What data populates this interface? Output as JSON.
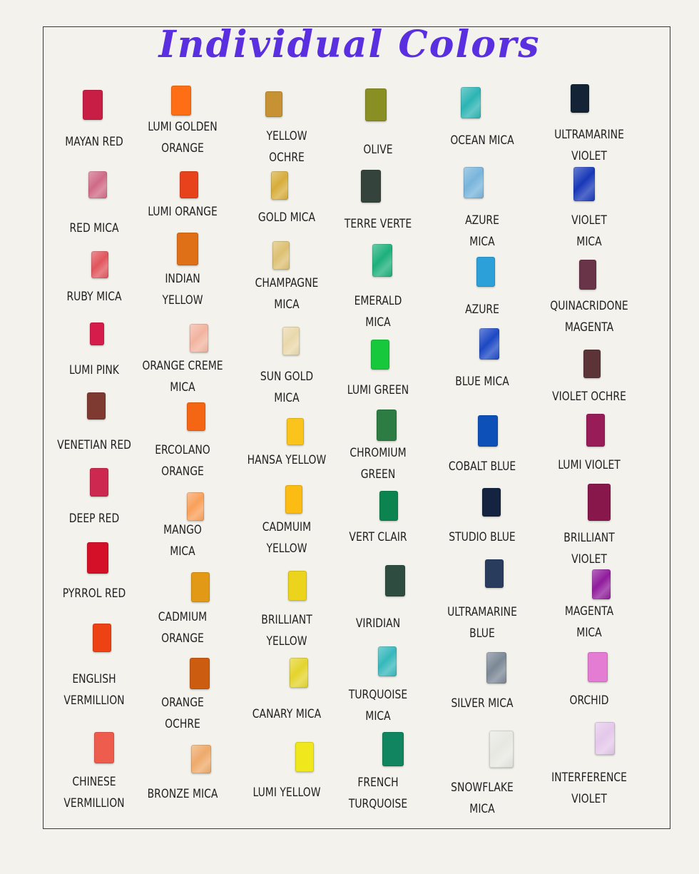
{
  "title": "Individual Colors",
  "columns": [
    {
      "items": [
        {
          "name": "MAYAN RED",
          "color": "#c81e45"
        },
        {
          "name": "RED MICA",
          "color": "#d06a86",
          "mica": true
        },
        {
          "name": "RUBY  MICA",
          "color": "#e0565c",
          "mica": true
        },
        {
          "name": "LUMI PINK",
          "color": "#d61c4a"
        },
        {
          "name": "VENETIAN RED",
          "color": "#7e3a30"
        },
        {
          "name": "DEEP RED",
          "color": "#cc2850"
        },
        {
          "name": "PYRROL RED",
          "color": "#d41028"
        },
        {
          "name": "ENGLISH\nVERMILLION",
          "color": "#ec4214"
        },
        {
          "name": "CHINESE\nVERMILLION",
          "color": "#ee5c4e"
        }
      ]
    },
    {
      "items": [
        {
          "name": "LUMI  GOLDEN\nORANGE",
          "color": "#ff6e14"
        },
        {
          "name": "LUMI ORANGE",
          "color": "#e8421c"
        },
        {
          "name": "INDIAN\nYELLOW",
          "color": "#e07018"
        },
        {
          "name": "ORANGE CREME\nMICA",
          "color": "#f2b4a0",
          "mica": true
        },
        {
          "name": "ERCOLANO\nORANGE",
          "color": "#f46614"
        },
        {
          "name": "MANGO\nMICA",
          "color": "#f9a05a",
          "mica": true
        },
        {
          "name": "CADMIUM\nORANGE",
          "color": "#e29a16"
        },
        {
          "name": "ORANGE\nOCHRE",
          "color": "#cc5c10"
        },
        {
          "name": "BRONZE MICA",
          "color": "#eeaa6a",
          "mica": true
        }
      ]
    },
    {
      "items": [
        {
          "name": "YELLOW\nOCHRE",
          "color": "#c69234"
        },
        {
          "name": "GOLD MICA",
          "color": "#d7ad3a",
          "mica": true
        },
        {
          "name": "CHAMPAGNE\nMICA",
          "color": "#ddc072",
          "mica": true
        },
        {
          "name": "SUN GOLD\nMICA",
          "color": "#ead8ac",
          "mica": true
        },
        {
          "name": "HANSA YELLOW",
          "color": "#fbc41c"
        },
        {
          "name": "CADMUIM\nYELLOW",
          "color": "#fcbc14"
        },
        {
          "name": "BRILLIANT\nYELLOW",
          "color": "#ecd41c"
        },
        {
          "name": "CANARY MICA",
          "color": "#e4d42c",
          "mica": true
        },
        {
          "name": "LUMI YELLOW",
          "color": "#f0e81c"
        }
      ]
    },
    {
      "items": [
        {
          "name": "OLIVE",
          "color": "#8a8f24"
        },
        {
          "name": "TERRE VERTE",
          "color": "#34443c"
        },
        {
          "name": "EMERALD\nMICA",
          "color": "#1cb07c",
          "mica": true
        },
        {
          "name": "LUMI GREEN",
          "color": "#18c83c"
        },
        {
          "name": "CHROMIUM\nGREEN",
          "color": "#2c7c44"
        },
        {
          "name": "VERT CLAIR",
          "color": "#0c8450"
        },
        {
          "name": "VIRIDIAN",
          "color": "#2e4c40"
        },
        {
          "name": "TURQUOISE\nMICA",
          "color": "#36b8bc",
          "mica": true
        },
        {
          "name": "FRENCH\nTURQUOISE",
          "color": "#118460"
        }
      ]
    },
    {
      "items": [
        {
          "name": "OCEAN MICA",
          "color": "#2cb4b4",
          "mica": true
        },
        {
          "name": "AZURE\nMICA",
          "color": "#78b4dc",
          "mica": true
        },
        {
          "name": "AZURE",
          "color": "#2ca0d8"
        },
        {
          "name": "BLUE MICA",
          "color": "#1c48c4",
          "mica": true
        },
        {
          "name": "COBALT BLUE",
          "color": "#0c50b8"
        },
        {
          "name": "STUDIO BLUE",
          "color": "#142440"
        },
        {
          "name": "ULTRAMARINE\nBLUE",
          "color": "#2a3c5e"
        },
        {
          "name": "SILVER MICA",
          "color": "#7c8896",
          "mica": true
        },
        {
          "name": "SNOWFLAKE\nMICA",
          "color": "#e8e8e2",
          "mica": true
        }
      ]
    },
    {
      "items": [
        {
          "name": "ULTRAMARINE\nVIOLET",
          "color": "#142436"
        },
        {
          "name": "VIOLET\nMICA",
          "color": "#1838b8",
          "mica": true
        },
        {
          "name": "QUINACRIDONE\nMAGENTA",
          "color": "#6a3448"
        },
        {
          "name": "VIOLET OCHRE",
          "color": "#5c3438"
        },
        {
          "name": "LUMI VIOLET",
          "color": "#981c58"
        },
        {
          "name": "BRILLIANT\nVIOLET",
          "color": "#88184c"
        },
        {
          "name": "MAGENTA\nMICA",
          "color": "#901c9c",
          "mica": true
        },
        {
          "name": "ORCHID",
          "color": "#e47cd4"
        },
        {
          "name": "INTERFERENCE\nVIOLET",
          "color": "#e4c8ea",
          "mica": true
        }
      ]
    }
  ]
}
